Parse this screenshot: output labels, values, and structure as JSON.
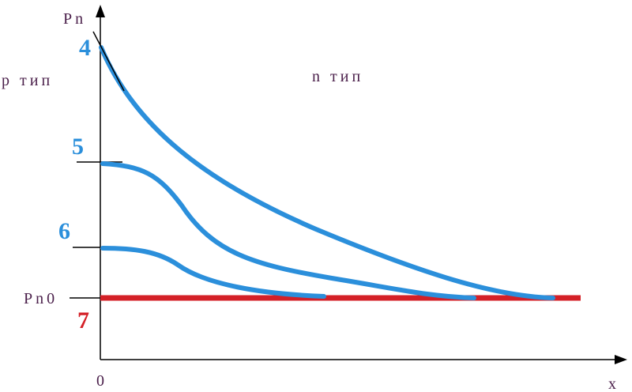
{
  "labels": {
    "y_axis": "Pn",
    "p_region": "р тип",
    "n_region": "n тип",
    "equilibrium": "Pn0",
    "origin": "0",
    "x_axis": "x"
  },
  "curves": [
    {
      "label": "4"
    },
    {
      "label": "5"
    },
    {
      "label": "6"
    },
    {
      "label": "7"
    }
  ]
}
